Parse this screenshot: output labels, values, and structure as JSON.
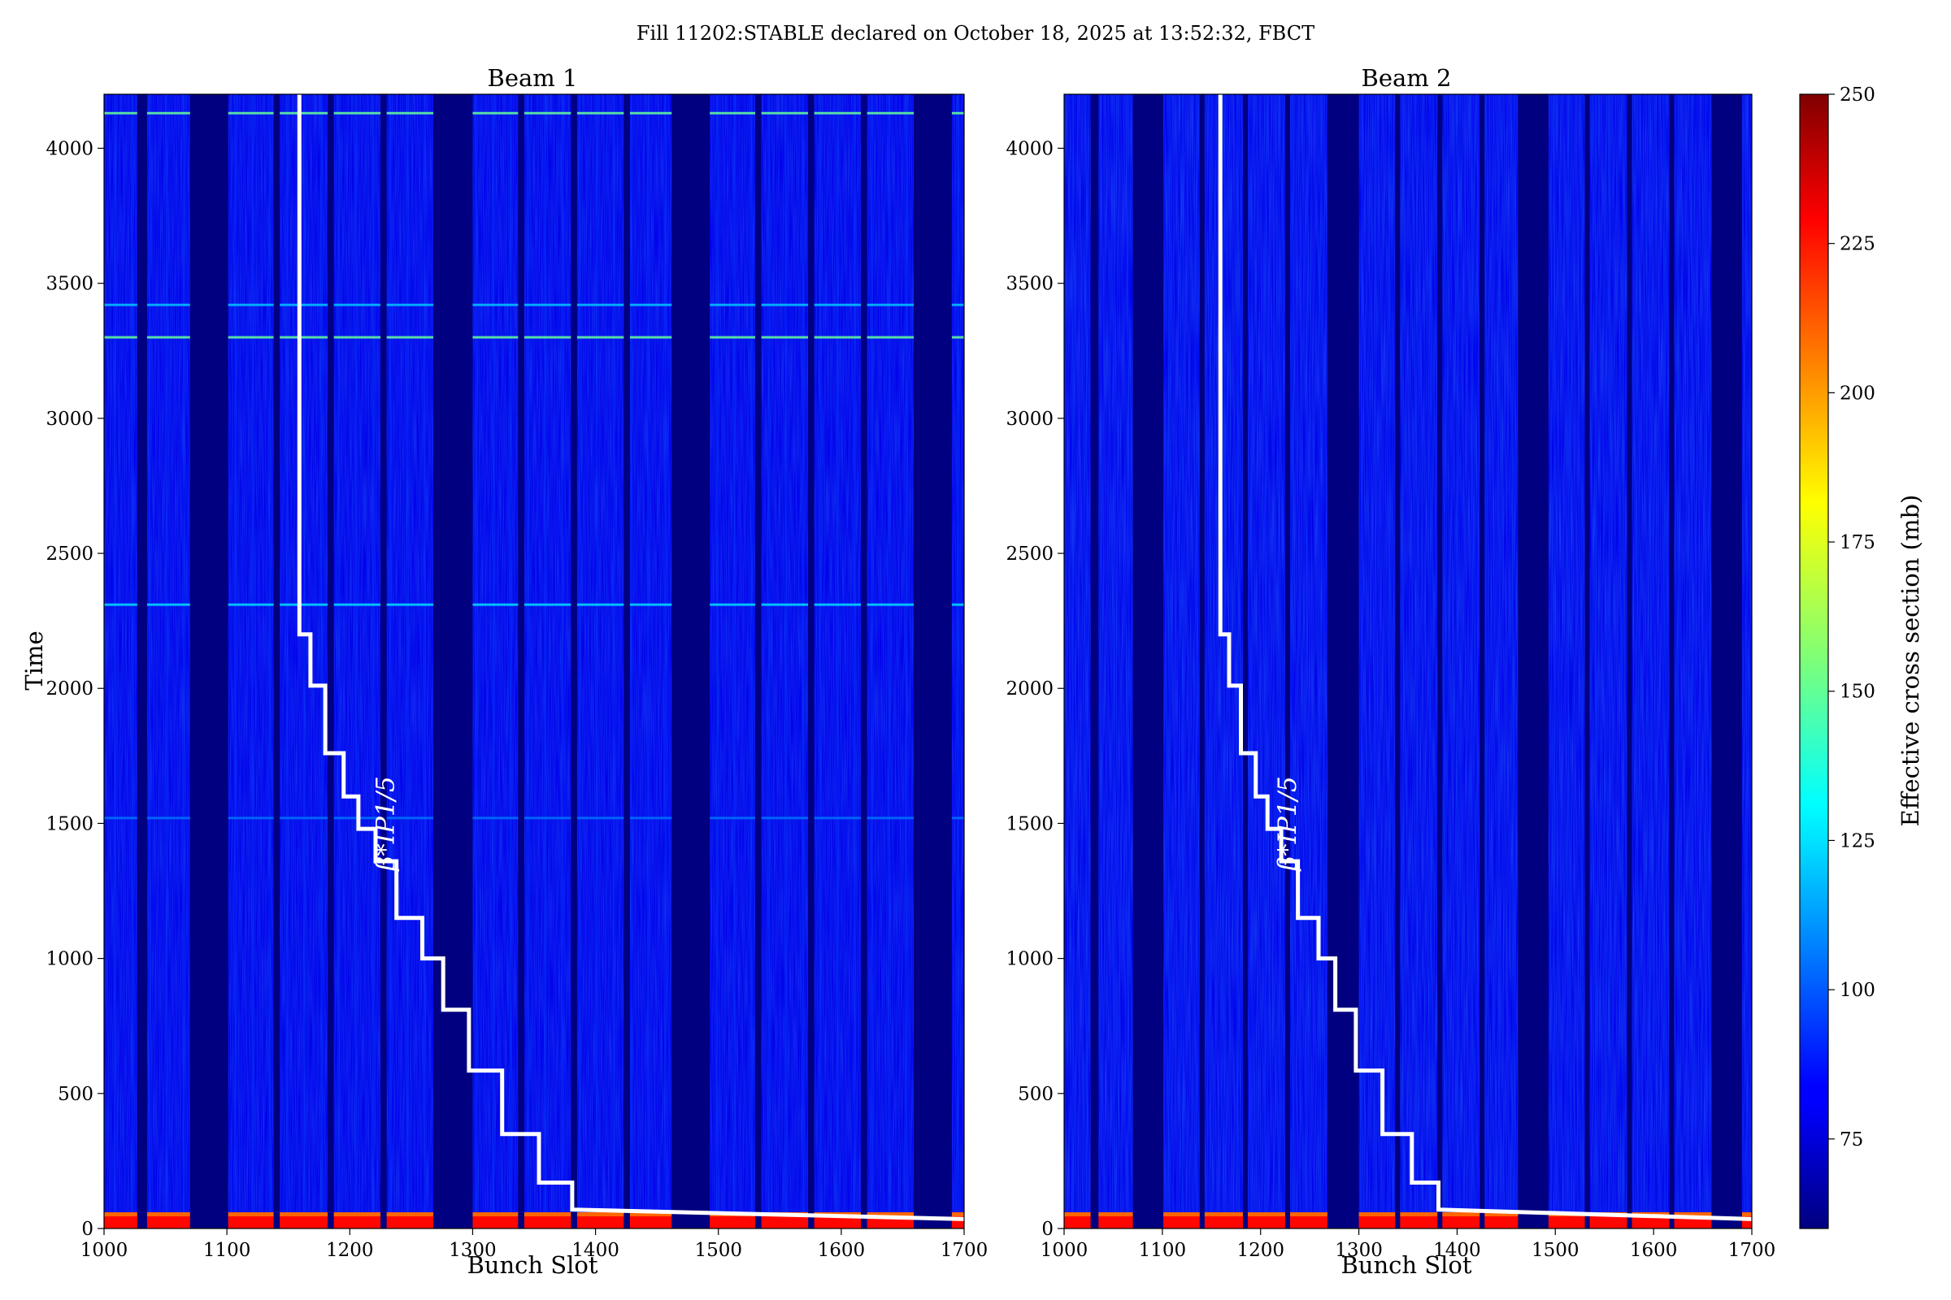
{
  "figure": {
    "title": "Fill 11202:STABLE declared on October 18, 2025 at 13:52:32, FBCT"
  },
  "chart_data": {
    "type": "heatmap",
    "panels": [
      {
        "title": "Beam 1",
        "xlabel": "Bunch Slot",
        "ylabel": "Time",
        "xlim": [
          1000,
          1700
        ],
        "ylim": [
          0,
          4200
        ],
        "xticks": [
          1000,
          1100,
          1200,
          1300,
          1400,
          1500,
          1600,
          1700
        ],
        "yticks": [
          0,
          500,
          1000,
          1500,
          2000,
          2500,
          3000,
          3500,
          4000
        ],
        "gaps": [
          [
            1027,
            1035
          ],
          [
            1070,
            1101
          ],
          [
            1138,
            1143
          ],
          [
            1182,
            1187
          ],
          [
            1225,
            1230
          ],
          [
            1268,
            1300
          ],
          [
            1337,
            1342
          ],
          [
            1380,
            1385
          ],
          [
            1423,
            1428
          ],
          [
            1462,
            1493
          ],
          [
            1530,
            1535
          ],
          [
            1573,
            1578
          ],
          [
            1616,
            1621
          ],
          [
            1659,
            1690
          ]
        ],
        "horizontal_features": [
          {
            "time": 4130,
            "value": 150
          },
          {
            "time": 3420,
            "value": 120
          },
          {
            "time": 3300,
            "value": 150
          },
          {
            "time": 2310,
            "value": 125
          },
          {
            "time": 1520,
            "value": 105
          }
        ],
        "annotation": "β*IP1/5"
      },
      {
        "title": "Beam 2",
        "xlabel": "Bunch Slot",
        "ylabel": "",
        "xlim": [
          1000,
          1700
        ],
        "ylim": [
          0,
          4200
        ],
        "xticks": [
          1000,
          1100,
          1200,
          1300,
          1400,
          1500,
          1600,
          1700
        ],
        "yticks": [
          0,
          500,
          1000,
          1500,
          2000,
          2500,
          3000,
          3500,
          4000
        ],
        "gaps": [
          [
            1027,
            1035
          ],
          [
            1070,
            1101
          ],
          [
            1138,
            1143
          ],
          [
            1182,
            1187
          ],
          [
            1225,
            1230
          ],
          [
            1268,
            1300
          ],
          [
            1337,
            1342
          ],
          [
            1380,
            1385
          ],
          [
            1423,
            1428
          ],
          [
            1462,
            1493
          ],
          [
            1530,
            1535
          ],
          [
            1573,
            1578
          ],
          [
            1616,
            1621
          ],
          [
            1659,
            1690
          ]
        ],
        "horizontal_features": [],
        "annotation": "β*IP1/5"
      }
    ],
    "beta_star_curve": {
      "x": [
        1159,
        1159,
        1168,
        1168,
        1180,
        1180,
        1195,
        1195,
        1207,
        1207,
        1221,
        1221,
        1238,
        1238,
        1259,
        1259,
        1276,
        1276,
        1297,
        1297,
        1324,
        1324,
        1354,
        1354,
        1381,
        1381,
        1700
      ],
      "y": [
        4200,
        2200,
        2200,
        2010,
        2010,
        1760,
        1760,
        1600,
        1600,
        1480,
        1480,
        1360,
        1360,
        1150,
        1150,
        1000,
        1000,
        810,
        810,
        585,
        585,
        350,
        350,
        170,
        170,
        70,
        35
      ]
    },
    "colorbar": {
      "label": "Effective cross section (mb)",
      "min": 60,
      "max": 250,
      "ticks": [
        75,
        100,
        125,
        150,
        175,
        200,
        225,
        250
      ],
      "colormap": "jet"
    }
  }
}
